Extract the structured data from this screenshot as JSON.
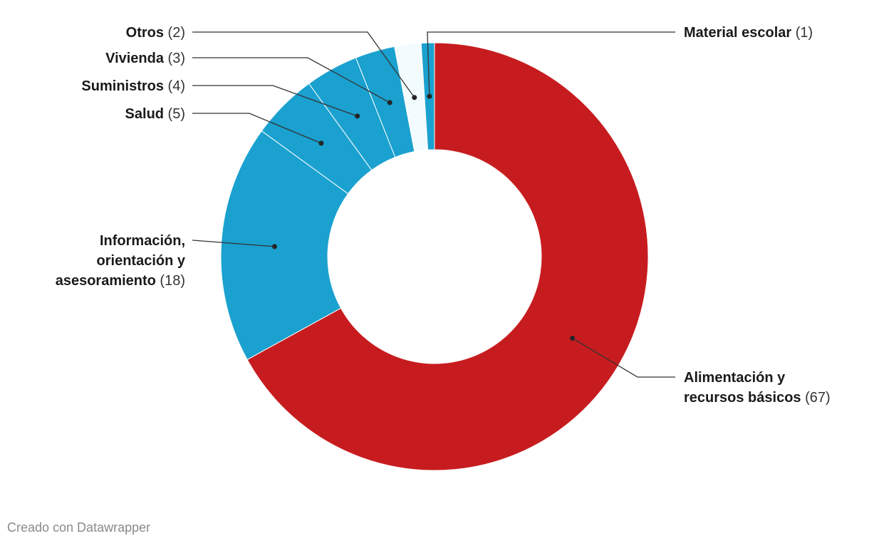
{
  "chart_data": {
    "type": "pie",
    "donut": true,
    "slices": [
      {
        "name": "Alimentación y recursos básicos",
        "label_lines": [
          "Alimentación y",
          "recursos básicos"
        ],
        "value": 67,
        "value_label": "(67)",
        "color": "#c71c1f",
        "label_side": "right"
      },
      {
        "name": "Información, orientación y asesoramiento",
        "label_lines": [
          "Información,",
          "orientación y",
          "asesoramiento"
        ],
        "value": 18,
        "value_label": "(18)",
        "color": "#1aa1cf",
        "label_side": "left"
      },
      {
        "name": "Salud",
        "label_lines": [
          "Salud"
        ],
        "value": 5,
        "value_label": "(5)",
        "color": "#1aa1cf",
        "label_side": "left"
      },
      {
        "name": "Suministros",
        "label_lines": [
          "Suministros"
        ],
        "value": 4,
        "value_label": "(4)",
        "color": "#1aa1cf",
        "label_side": "left"
      },
      {
        "name": "Vivienda",
        "label_lines": [
          "Vivienda"
        ],
        "value": 3,
        "value_label": "(3)",
        "color": "#1aa1cf",
        "label_side": "left"
      },
      {
        "name": "Otros",
        "label_lines": [
          "Otros"
        ],
        "value": 2,
        "value_label": "(2)",
        "color": "#f2fcfe",
        "label_side": "left"
      },
      {
        "name": "Material escolar",
        "label_lines": [
          "Material escolar"
        ],
        "value": 1,
        "value_label": "(1)",
        "color": "#1aa1cf",
        "label_side": "right"
      }
    ],
    "legend": "none",
    "title": ""
  },
  "footer": {
    "credit": "Creado con Datawrapper"
  }
}
